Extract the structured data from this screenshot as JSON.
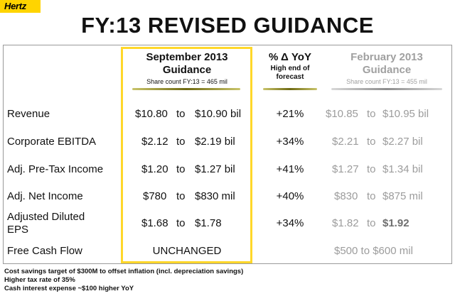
{
  "logo": {
    "text": "Hertz"
  },
  "title": "FY:13 REVISED GUIDANCE",
  "columns": {
    "sep": {
      "line1": "September 2013",
      "line2": "Guidance",
      "note": "Share count FY:13 = 465 mil"
    },
    "yoy": {
      "line1": "% Δ YoY",
      "line2": "High end of",
      "line3": "forecast"
    },
    "feb": {
      "line1": "February 2013",
      "line2": "Guidance",
      "note": "Share count FY:13 = 455 mil"
    }
  },
  "rows": [
    {
      "label": "Revenue",
      "sep_low": "$10.80",
      "sep_to": "to",
      "sep_high": "$10.90 bil",
      "yoy": "+21%",
      "feb_low": "$10.85",
      "feb_to": "to",
      "feb_high": "$10.95 bil"
    },
    {
      "label": "Corporate EBITDA",
      "sep_low": "$2.12",
      "sep_to": "to",
      "sep_high": "$2.19 bil",
      "yoy": "+34%",
      "feb_low": "$2.21",
      "feb_to": "to",
      "feb_high": "$2.27 bil"
    },
    {
      "label": "Adj. Pre-Tax Income",
      "sep_low": "$1.20",
      "sep_to": "to",
      "sep_high": "$1.27 bil",
      "yoy": "+41%",
      "feb_low": "$1.27",
      "feb_to": "to",
      "feb_high": "$1.34 bil"
    },
    {
      "label": "Adj. Net Income",
      "sep_low": "$780",
      "sep_to": "to",
      "sep_high": "$830 mil",
      "yoy": "+40%",
      "feb_low": "$830",
      "feb_to": "to",
      "feb_high": "$875 mil"
    },
    {
      "label_line1": "Adjusted Diluted",
      "label_line2": "EPS",
      "sep_low": "$1.68",
      "sep_to": "to",
      "sep_high": "$1.78",
      "yoy": "+34%",
      "feb_low": "$1.82",
      "feb_to": "to",
      "feb_high": "$1.92"
    },
    {
      "label": "Free Cash Flow",
      "sep_value": "UNCHANGED",
      "feb_value": "$500 to $600 mil"
    }
  ],
  "footnotes": [
    "Cost savings target of $300M to offset inflation (incl. depreciation savings)",
    "Higher tax rate of 35%",
    "Cash interest expense ~$100 higher YoY"
  ],
  "colors": {
    "brand_yellow": "#ffd400",
    "highlight_border": "#ffd72a",
    "muted_text": "#9c9c9c",
    "underline_olive": "#8a8a1e"
  }
}
